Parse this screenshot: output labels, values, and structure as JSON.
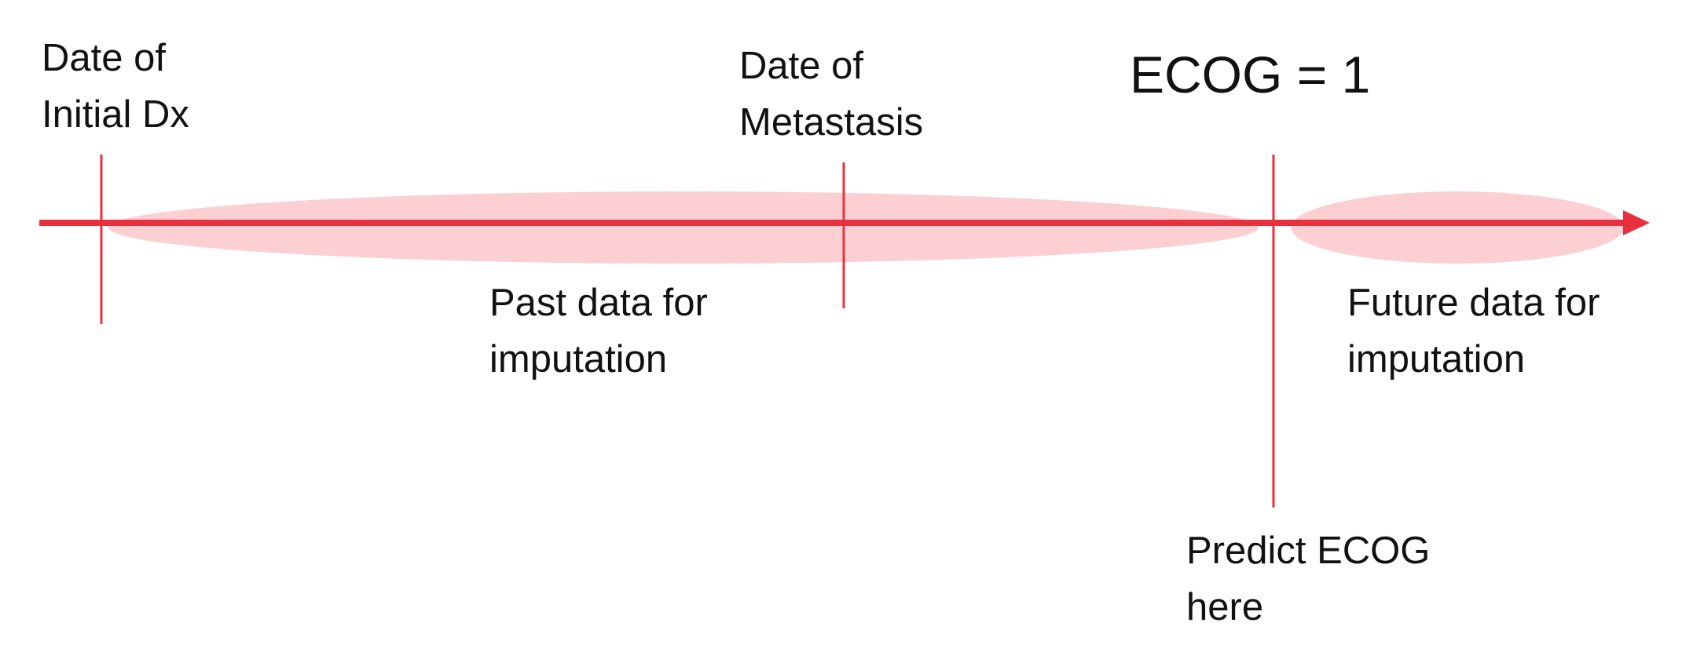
{
  "colors": {
    "timeline": "#e8303e",
    "highlight": "#fcd0d3",
    "text": "#111111"
  },
  "labels": {
    "initial_dx": {
      "line1": "Date of",
      "line2": "Initial Dx"
    },
    "metastasis": {
      "line1": "Date of",
      "line2": "Metastasis"
    },
    "ecog_value": "ECOG = 1",
    "past_data": {
      "line1": "Past data for",
      "line2": "imputation"
    },
    "future_data": {
      "line1": "Future data for",
      "line2": "imputation"
    },
    "predict": {
      "line1": "Predict ECOG",
      "line2": "here"
    }
  }
}
